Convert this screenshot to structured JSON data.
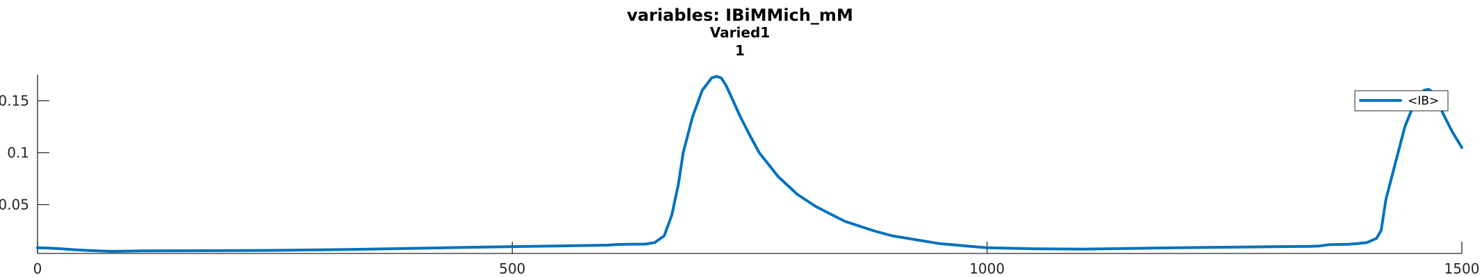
{
  "chart_data": {
    "type": "line",
    "title": "variables: IBiMMich_mM",
    "subtitle": "Varied1",
    "subtitle2": "1",
    "xlabel": "",
    "ylabel": "",
    "xlim": [
      0,
      1500
    ],
    "ylim": [
      0.003,
      0.175
    ],
    "xticks": [
      0,
      500,
      1000,
      1500
    ],
    "xtick_labels": [
      "0",
      "500",
      "1000",
      "1500"
    ],
    "yticks": [
      0.05,
      0.1,
      0.15
    ],
    "ytick_labels": [
      "0.05",
      "0.1",
      "0.15"
    ],
    "grid": false,
    "legend": {
      "location": "top-right",
      "entries": [
        "<IB>"
      ]
    },
    "series": [
      {
        "name": "<IB>",
        "color": "#0072BD",
        "x": [
          0,
          10,
          25,
          40,
          55,
          70,
          78,
          90,
          110,
          150,
          200,
          250,
          300,
          350,
          400,
          450,
          500,
          550,
          600,
          610,
          620,
          640,
          650,
          660,
          668,
          675,
          680,
          690,
          700,
          710,
          715,
          720,
          725,
          730,
          740,
          750,
          760,
          780,
          800,
          820,
          850,
          880,
          900,
          950,
          1000,
          1050,
          1100,
          1150,
          1200,
          1250,
          1300,
          1340,
          1350,
          1360,
          1380,
          1390,
          1400,
          1410,
          1415,
          1420,
          1430,
          1440,
          1450,
          1460,
          1465,
          1470,
          1475,
          1480,
          1490,
          1500
        ],
        "y": [
          0.0085,
          0.0083,
          0.0075,
          0.0065,
          0.0058,
          0.0053,
          0.005,
          0.0052,
          0.0055,
          0.0056,
          0.0057,
          0.006,
          0.0065,
          0.0072,
          0.008,
          0.0088,
          0.0096,
          0.0103,
          0.011,
          0.0116,
          0.0118,
          0.012,
          0.0135,
          0.02,
          0.04,
          0.07,
          0.1,
          0.135,
          0.16,
          0.172,
          0.1735,
          0.172,
          0.165,
          0.155,
          0.135,
          0.117,
          0.1,
          0.077,
          0.06,
          0.048,
          0.034,
          0.025,
          0.02,
          0.0125,
          0.0085,
          0.0075,
          0.0072,
          0.0078,
          0.0085,
          0.009,
          0.0095,
          0.0098,
          0.0102,
          0.0115,
          0.0118,
          0.0125,
          0.0135,
          0.0175,
          0.025,
          0.055,
          0.09,
          0.125,
          0.148,
          0.16,
          0.161,
          0.158,
          0.15,
          0.138,
          0.12,
          0.105
        ]
      }
    ]
  }
}
